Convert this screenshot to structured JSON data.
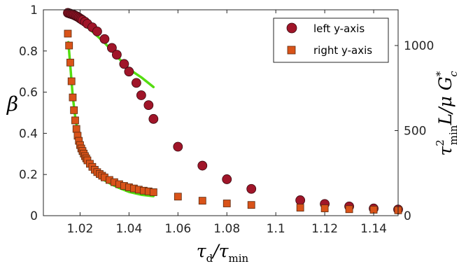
{
  "chart_data": {
    "type": "scatter",
    "x_axis": {
      "label": "τd/τmin",
      "range": [
        1.005,
        1.15
      ],
      "ticks": [
        1.02,
        1.04,
        1.06,
        1.08,
        1.1,
        1.12,
        1.14
      ],
      "tick_labels": [
        "1.02",
        "1.04",
        "1.06",
        "1.08",
        "1.1",
        "1.12",
        "1.14"
      ]
    },
    "y_left": {
      "label": "β",
      "range": [
        0,
        1
      ],
      "ticks": [
        0,
        0.2,
        0.4,
        0.6,
        0.8,
        1
      ],
      "tick_labels": [
        "0",
        "0.2",
        "0.4",
        "0.6",
        "0.8",
        "1"
      ]
    },
    "y_right": {
      "label": "τ²min L / μ G*c",
      "range": [
        0,
        1210
      ],
      "ticks": [
        0,
        500,
        1000
      ],
      "tick_labels": [
        "0",
        "500",
        "1000"
      ]
    },
    "legend_position": "top-right",
    "grid": false,
    "series": [
      {
        "name": "left y-axis",
        "axis": "left",
        "marker": "circle",
        "color": "#a01529",
        "x": [
          1.015,
          1.0155,
          1.016,
          1.0165,
          1.017,
          1.0175,
          1.018,
          1.0185,
          1.019,
          1.0195,
          1.02,
          1.0205,
          1.021,
          1.022,
          1.023,
          1.025,
          1.027,
          1.03,
          1.033,
          1.035,
          1.038,
          1.04,
          1.043,
          1.045,
          1.048,
          1.05,
          1.06,
          1.07,
          1.08,
          1.09,
          1.11,
          1.12,
          1.13,
          1.14,
          1.15
        ],
        "y": [
          0.985,
          0.983,
          0.981,
          0.979,
          0.977,
          0.975,
          0.972,
          0.969,
          0.966,
          0.962,
          0.958,
          0.954,
          0.95,
          0.942,
          0.932,
          0.915,
          0.895,
          0.858,
          0.815,
          0.782,
          0.737,
          0.7,
          0.645,
          0.585,
          0.537,
          0.47,
          0.335,
          0.243,
          0.177,
          0.13,
          0.075,
          0.057,
          0.045,
          0.035,
          0.03
        ]
      },
      {
        "name": "right y-axis",
        "axis": "right",
        "marker": "square",
        "color": "#d95319",
        "x": [
          1.015,
          1.0155,
          1.016,
          1.0165,
          1.017,
          1.0175,
          1.018,
          1.0185,
          1.019,
          1.0195,
          1.02,
          1.0205,
          1.021,
          1.0215,
          1.022,
          1.0225,
          1.023,
          1.024,
          1.025,
          1.026,
          1.027,
          1.028,
          1.029,
          1.03,
          1.032,
          1.034,
          1.036,
          1.038,
          1.04,
          1.042,
          1.044,
          1.046,
          1.048,
          1.05,
          1.06,
          1.07,
          1.08,
          1.09,
          1.11,
          1.12,
          1.13,
          1.14,
          1.15
        ],
        "y": [
          1070,
          1000,
          900,
          790,
          695,
          620,
          560,
          510,
          470,
          440,
          415,
          395,
          380,
          365,
          350,
          337,
          325,
          305,
          287,
          270,
          256,
          245,
          235,
          225,
          210,
          197,
          185,
          175,
          167,
          160,
          153,
          147,
          143,
          138,
          112,
          88,
          72,
          63,
          47,
          43,
          38,
          35,
          32
        ]
      }
    ],
    "fit_curves": [
      {
        "axis": "left",
        "color": "#55dd11",
        "x": [
          1.016,
          1.02,
          1.025,
          1.03,
          1.035,
          1.04,
          1.045,
          1.05
        ],
        "y": [
          0.975,
          0.945,
          0.895,
          0.84,
          0.775,
          0.712,
          0.672,
          0.625
        ]
      },
      {
        "axis": "right",
        "color": "#55dd11",
        "x": [
          1.0152,
          1.016,
          1.017,
          1.018,
          1.019,
          1.02,
          1.021,
          1.022,
          1.024,
          1.026,
          1.028,
          1.03,
          1.033,
          1.036,
          1.04,
          1.045,
          1.05
        ],
        "y": [
          1020,
          880,
          700,
          580,
          495,
          435,
          390,
          355,
          300,
          262,
          232,
          208,
          183,
          163,
          140,
          123,
          115
        ]
      }
    ]
  }
}
